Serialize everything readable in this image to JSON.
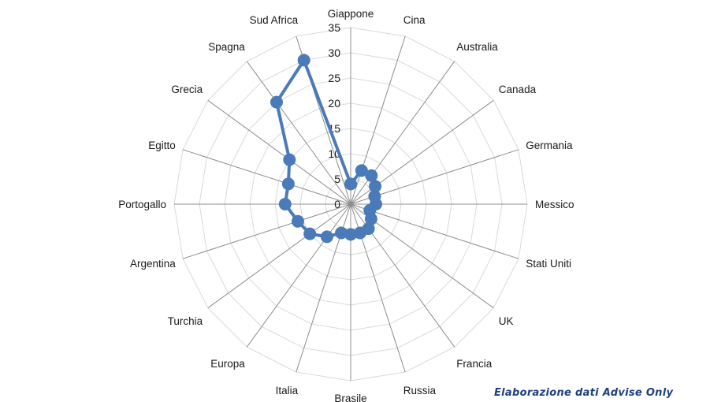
{
  "credit": "Elaborazione dati Advise Only",
  "colors": {
    "series": "#4a7ab8",
    "grid": "#d9d9d9",
    "spoke": "#8c8c8c",
    "text": "#1a1a1a"
  },
  "chart_data": {
    "type": "radar",
    "title": "",
    "categories": [
      "Giappone",
      "Cina",
      "Australia",
      "Canada",
      "Germania",
      "Messico",
      "Stati Uniti",
      "UK",
      "Francia",
      "Russia",
      "Brasile",
      "Italia",
      "Europa",
      "Turchia",
      "Argentina",
      "Portogallo",
      "Egitto",
      "Grecia",
      "Spagna",
      "Sud Africa"
    ],
    "series": [
      {
        "values": [
          4,
          7,
          7,
          6,
          5,
          5,
          4,
          5,
          6,
          6,
          6,
          6,
          8,
          10,
          11,
          13,
          13,
          15,
          25,
          30
        ]
      }
    ],
    "rlim": [
      0,
      35
    ],
    "ticks": [
      0,
      5,
      10,
      15,
      20,
      25,
      30,
      35
    ],
    "grid": true,
    "legend": "none"
  }
}
